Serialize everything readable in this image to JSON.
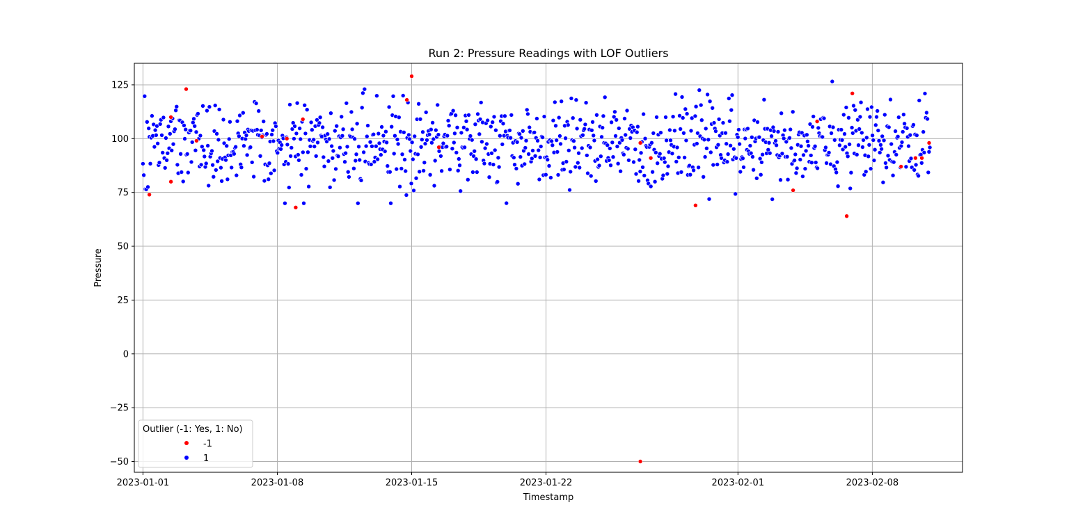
{
  "chart_data": {
    "type": "scatter",
    "title": "Run 2: Pressure Readings with LOF Outliers",
    "xlabel": "Timestamp",
    "ylabel": "Pressure",
    "x_axis_type": "date",
    "xlim": [
      "2023-01-01",
      "2023-02-11"
    ],
    "ylim": [
      -55,
      135
    ],
    "x_ticks": [
      "2023-01-01",
      "2023-01-08",
      "2023-01-15",
      "2023-01-22",
      "2023-02-01",
      "2023-02-08"
    ],
    "y_ticks": [
      -50,
      -25,
      0,
      25,
      50,
      75,
      100,
      125
    ],
    "grid": true,
    "legend": {
      "title": "Outlier (-1: Yes, 1: No)",
      "placement": "bottom-left",
      "entries": [
        {
          "label": "-1",
          "color": "#ff0000"
        },
        {
          "label": "1",
          "color": "#0000ff"
        }
      ]
    },
    "series": [
      {
        "name": "-1",
        "color": "#ff0000",
        "points": [
          [
            "2023-01-01T08:00",
            74
          ],
          [
            "2023-01-02T11:00",
            110
          ],
          [
            "2023-01-02T11:00",
            80
          ],
          [
            "2023-01-03T06:00",
            123
          ],
          [
            "2023-01-03T19:00",
            99
          ],
          [
            "2023-01-07T05:00",
            101
          ],
          [
            "2023-01-08T12:00",
            100
          ],
          [
            "2023-01-08T23:00",
            68
          ],
          [
            "2023-01-09T08:00",
            109
          ],
          [
            "2023-01-14T18:00",
            118
          ],
          [
            "2023-01-15T00:00",
            129
          ],
          [
            "2023-01-16T10:00",
            96
          ],
          [
            "2023-01-26T22:00",
            98
          ],
          [
            "2023-01-26T22:00",
            -50
          ],
          [
            "2023-01-27T11:00",
            91
          ],
          [
            "2023-01-29T19:00",
            69
          ],
          [
            "2023-02-03T21:00",
            76
          ],
          [
            "2023-02-05T03:00",
            108
          ],
          [
            "2023-02-06T16:00",
            64
          ],
          [
            "2023-02-06T23:00",
            121
          ],
          [
            "2023-02-09T12:00",
            87
          ],
          [
            "2023-02-10T06:00",
            91
          ],
          [
            "2023-02-10T14:00",
            91
          ],
          [
            "2023-02-10T23:00",
            98
          ]
        ]
      },
      {
        "name": "1",
        "color": "#0000ff",
        "n_points": 960,
        "mean": 98,
        "spread": 10
      }
    ]
  }
}
